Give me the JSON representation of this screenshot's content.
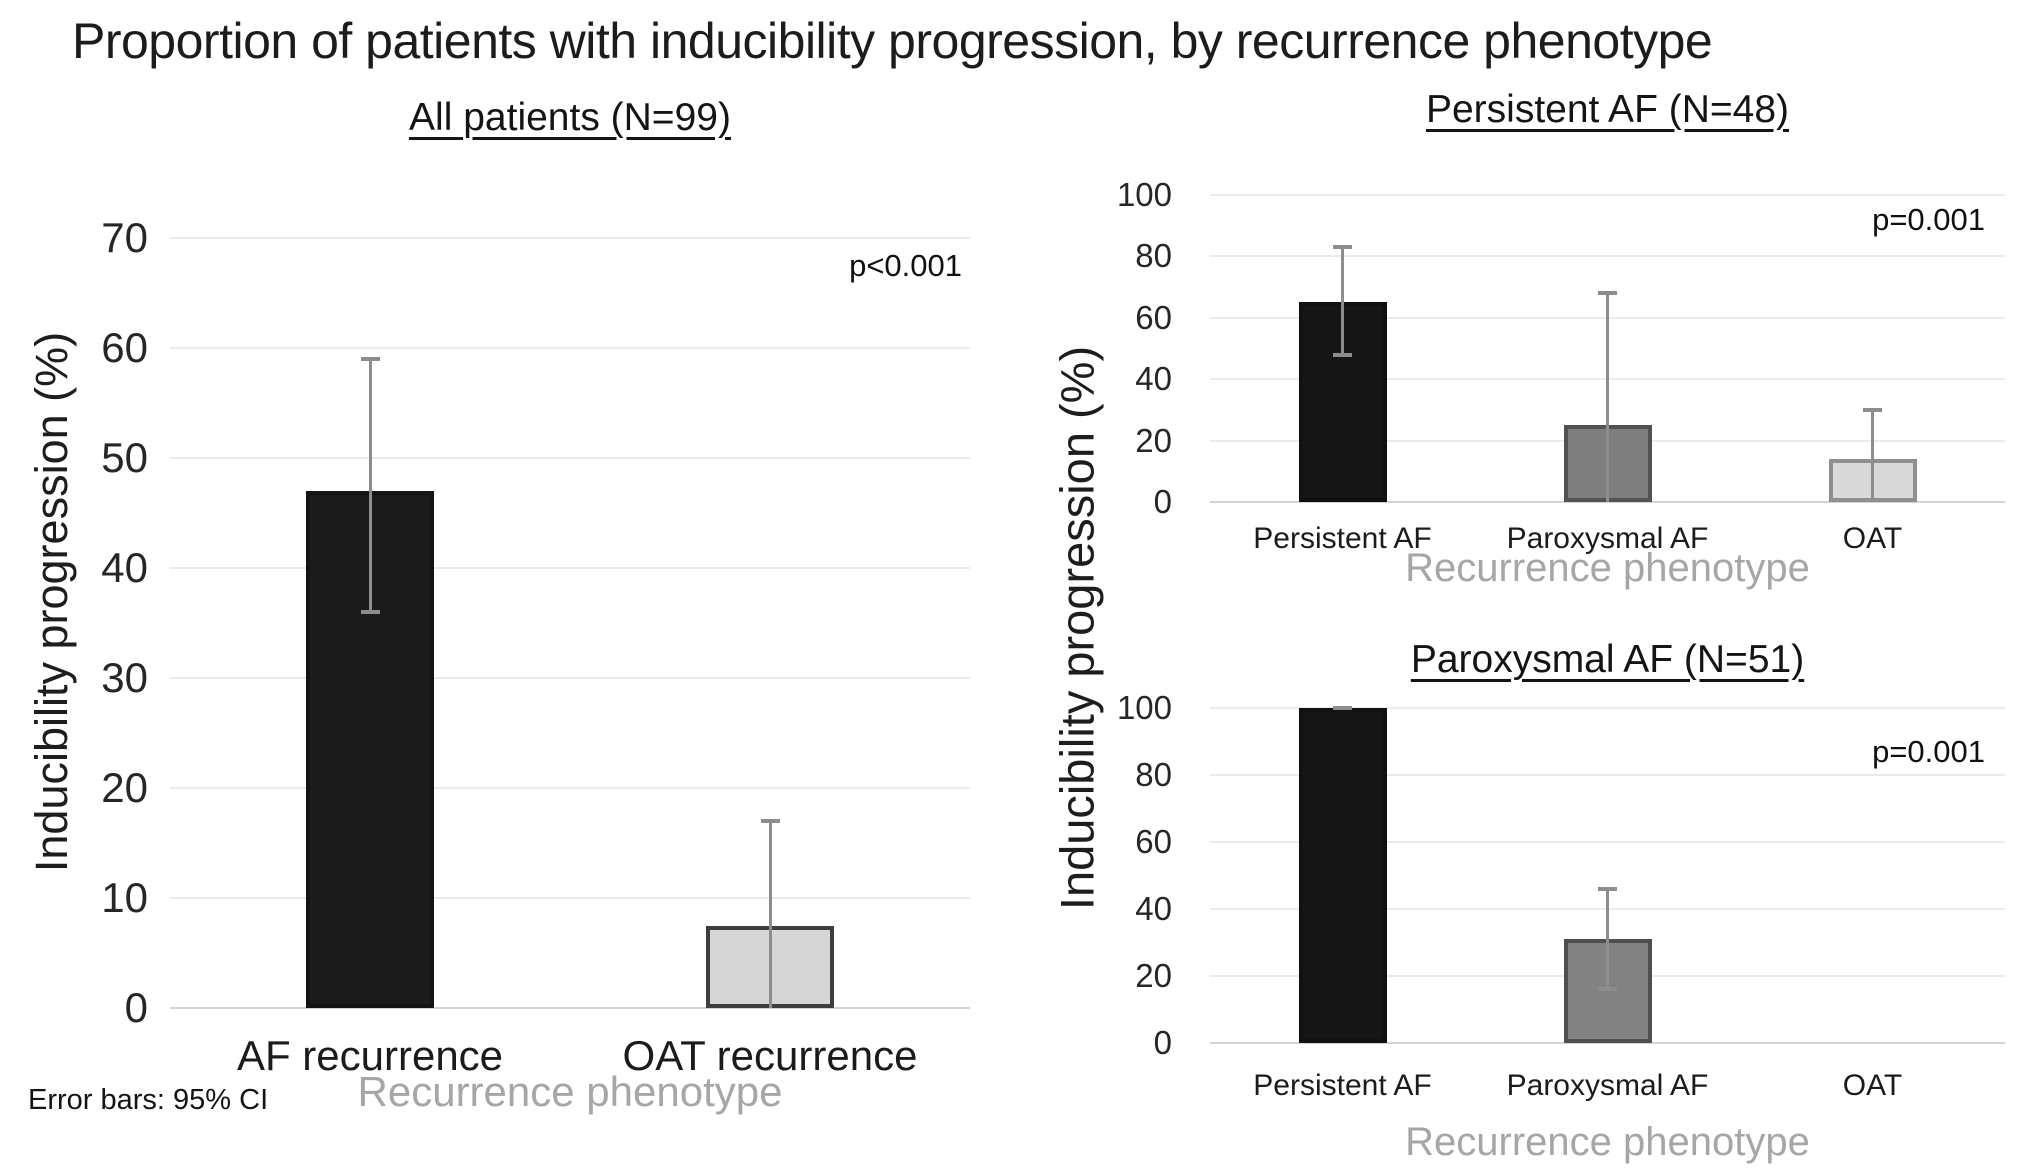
{
  "figure_title": "Proportion of patients with inducibility progression, by recurrence phenotype",
  "footnote": "Error bars: 95% CI",
  "colors": {
    "gridline": "#ebebeb",
    "zero_axis": "#d4d4d4",
    "error_bar": "#8d8d8d",
    "muted_axis_label": "#a6a6a6"
  },
  "chart_data": [
    {
      "type": "bar",
      "title": "All patients (N=99)",
      "p_value_label": "p<0.001",
      "ylabel": "Inducibility progression (%)",
      "xlabel": "Recurrence phenotype",
      "ylim": [
        0,
        70
      ],
      "yticks": [
        70,
        60,
        50,
        40,
        30,
        20,
        10,
        0
      ],
      "grid": true,
      "error_bars": "95% CI",
      "categories": [
        "AF recurrence",
        "OAT recurrence"
      ],
      "values": [
        47,
        7.5
      ],
      "ci_low": [
        36,
        null
      ],
      "ci_high": [
        59,
        17
      ],
      "bar_fills": [
        "#1b1b1b",
        "#d6d6d6"
      ],
      "bar_borders": [
        "#141414",
        "#3d3d3d"
      ]
    },
    {
      "type": "bar",
      "title": "Persistent AF (N=48)",
      "p_value_label": "p=0.001",
      "ylabel": "Inducibility progression (%)",
      "xlabel": "Recurrence phenotype",
      "ylim": [
        0,
        100
      ],
      "yticks": [
        100,
        80,
        60,
        40,
        20,
        0
      ],
      "grid": true,
      "error_bars": "95% CI",
      "categories": [
        "Persistent AF",
        "Paroxysmal AF",
        "OAT"
      ],
      "values": [
        65,
        25,
        14
      ],
      "ci_low": [
        48,
        null,
        null
      ],
      "ci_high": [
        83,
        68,
        30
      ],
      "bar_fills": [
        "#161616",
        "#7f7f7f",
        "#d9d9d9"
      ],
      "bar_borders": [
        "#111111",
        "#525252",
        "#8f8f8f"
      ]
    },
    {
      "type": "bar",
      "title": "Paroxysmal AF (N=51)",
      "p_value_label": "p=0.001",
      "ylabel": "Inducibility progression (%)",
      "xlabel": "Recurrence phenotype",
      "ylim": [
        0,
        100
      ],
      "yticks": [
        100,
        80,
        60,
        40,
        20,
        0
      ],
      "grid": true,
      "error_bars": "95% CI",
      "categories": [
        "Persistent AF",
        "Paroxysmal AF",
        "OAT"
      ],
      "values": [
        100,
        31,
        0
      ],
      "ci_low": [
        null,
        16,
        null
      ],
      "ci_high": [
        100,
        46,
        null
      ],
      "bar_fills": [
        "#161616",
        "#828282",
        "#d9d9d9"
      ],
      "bar_borders": [
        "#111111",
        "#4f4f4f",
        "#8f8f8f"
      ]
    }
  ]
}
